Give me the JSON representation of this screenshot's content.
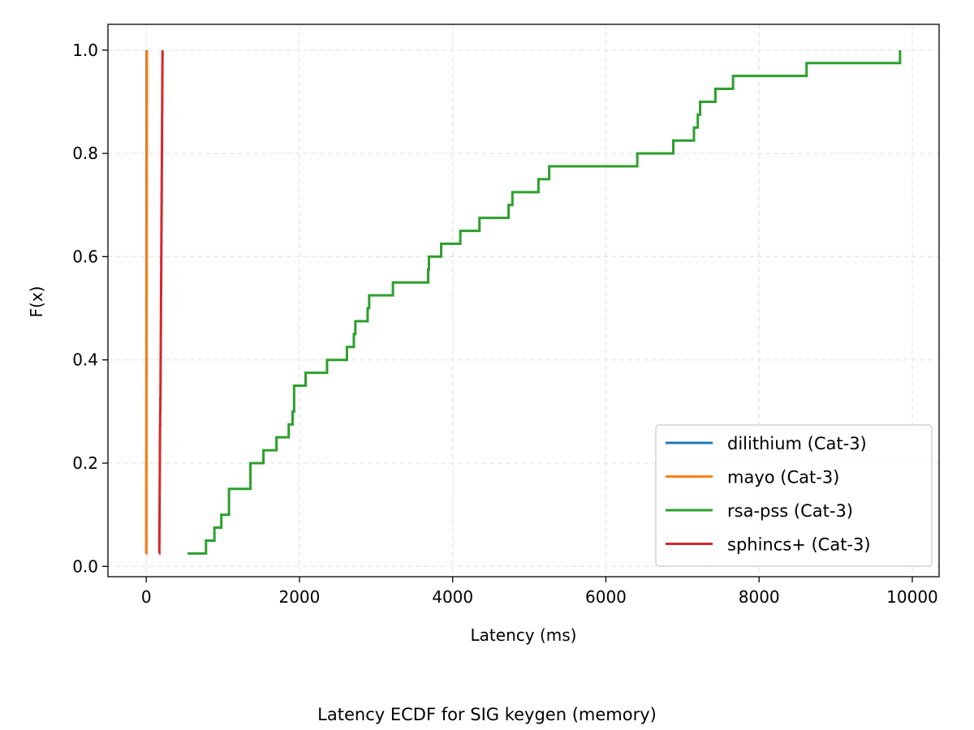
{
  "caption": "Latency ECDF for SIG keygen (memory)",
  "chart_data": {
    "type": "line",
    "step": "post",
    "title": "",
    "xlabel": "Latency (ms)",
    "ylabel": "F(x)",
    "xlim": [
      -500,
      10350
    ],
    "ylim": [
      -0.02,
      1.05
    ],
    "xticks": [
      0,
      2000,
      4000,
      6000,
      8000,
      10000
    ],
    "xtick_labels": [
      "0",
      "2000",
      "4000",
      "6000",
      "8000",
      "10000"
    ],
    "yticks": [
      0.0,
      0.2,
      0.4,
      0.6,
      0.8,
      1.0
    ],
    "ytick_labels": [
      "0.0",
      "0.2",
      "0.4",
      "0.6",
      "0.8",
      "1.0"
    ],
    "grid": true,
    "legend_position": "lower-right",
    "series": [
      {
        "name": "dilithium (Cat-3)",
        "color": "#1f77b4",
        "x": [
          0.5,
          0.6,
          0.7,
          0.8,
          0.9,
          1.0,
          1.1,
          1.2,
          1.3,
          1.4,
          1.5,
          1.6,
          1.7,
          1.8,
          1.9,
          2.0,
          2.1,
          2.2,
          2.3,
          2.4,
          2.5,
          2.6,
          2.7,
          2.8,
          2.9,
          3.0,
          3.1,
          3.2,
          3.3,
          3.4,
          3.5,
          3.6,
          3.7,
          3.8,
          3.9,
          4.0,
          4.1,
          4.2,
          4.3,
          4.4
        ],
        "y": [
          0.025,
          0.05,
          0.075,
          0.1,
          0.125,
          0.15,
          0.175,
          0.2,
          0.225,
          0.25,
          0.275,
          0.3,
          0.325,
          0.35,
          0.375,
          0.4,
          0.425,
          0.45,
          0.475,
          0.5,
          0.525,
          0.55,
          0.575,
          0.6,
          0.625,
          0.65,
          0.675,
          0.7,
          0.725,
          0.75,
          0.775,
          0.8,
          0.825,
          0.85,
          0.875,
          0.9,
          0.925,
          0.95,
          0.975,
          1.0
        ]
      },
      {
        "name": "mayo (Cat-3)",
        "color": "#ff7f0e",
        "x": [
          1,
          1.2,
          1.4,
          1.6,
          1.8,
          2.0,
          2.2,
          2.4,
          2.6,
          2.8,
          3.0,
          3.2,
          3.4,
          3.6,
          3.8,
          4.0,
          4.2,
          4.4,
          4.6,
          4.8,
          5.0,
          5.2,
          5.4,
          5.6,
          5.8,
          6.0,
          6.2,
          6.4,
          6.6,
          6.8,
          7.0,
          7.2,
          7.4,
          7.6,
          7.8,
          8.0,
          8.2,
          8.4,
          8.6,
          9.0
        ],
        "y": [
          0.025,
          0.05,
          0.075,
          0.1,
          0.125,
          0.15,
          0.175,
          0.2,
          0.225,
          0.25,
          0.275,
          0.3,
          0.325,
          0.35,
          0.375,
          0.4,
          0.425,
          0.45,
          0.475,
          0.5,
          0.525,
          0.55,
          0.575,
          0.6,
          0.625,
          0.65,
          0.675,
          0.7,
          0.725,
          0.75,
          0.775,
          0.8,
          0.825,
          0.85,
          0.875,
          0.9,
          0.925,
          0.95,
          0.975,
          1.0
        ]
      },
      {
        "name": "rsa-pss (Cat-3)",
        "color": "#2ca02c",
        "x": [
          540,
          780,
          890,
          980,
          1080,
          1320,
          1360,
          1530,
          1700,
          1860,
          1910,
          1930,
          2080,
          2360,
          2620,
          2710,
          2730,
          2890,
          2910,
          3220,
          3680,
          3690,
          3850,
          4100,
          4350,
          4730,
          4780,
          5120,
          5260,
          6410,
          6880,
          7150,
          7200,
          7230,
          7430,
          7660,
          8620,
          8980,
          9120,
          9840
        ],
        "y": [
          0.025,
          0.05,
          0.075,
          0.1,
          0.15,
          0.15,
          0.2,
          0.225,
          0.25,
          0.275,
          0.3,
          0.35,
          0.375,
          0.4,
          0.425,
          0.45,
          0.475,
          0.5,
          0.525,
          0.55,
          0.575,
          0.6,
          0.625,
          0.65,
          0.675,
          0.7,
          0.725,
          0.75,
          0.775,
          0.8,
          0.825,
          0.85,
          0.875,
          0.9,
          0.925,
          0.95,
          0.975,
          0.975,
          0.975,
          1.0
        ]
      },
      {
        "name": "sphincs+ (Cat-3)",
        "color": "#d62728",
        "x": [
          170,
          171,
          172,
          173,
          174,
          175,
          176,
          177,
          178,
          179,
          180,
          182,
          184,
          186,
          187,
          188,
          189,
          190,
          191,
          192,
          193,
          194,
          195,
          196,
          197,
          198,
          199,
          200,
          201,
          202,
          203,
          204,
          205,
          206,
          207,
          208,
          209,
          210,
          211,
          212
        ],
        "y": [
          0.025,
          0.05,
          0.075,
          0.1,
          0.125,
          0.15,
          0.175,
          0.2,
          0.225,
          0.25,
          0.275,
          0.3,
          0.325,
          0.35,
          0.375,
          0.4,
          0.425,
          0.45,
          0.475,
          0.5,
          0.525,
          0.55,
          0.575,
          0.6,
          0.625,
          0.65,
          0.675,
          0.7,
          0.725,
          0.75,
          0.775,
          0.8,
          0.825,
          0.85,
          0.875,
          0.9,
          0.925,
          0.95,
          0.975,
          1.0
        ]
      }
    ]
  }
}
